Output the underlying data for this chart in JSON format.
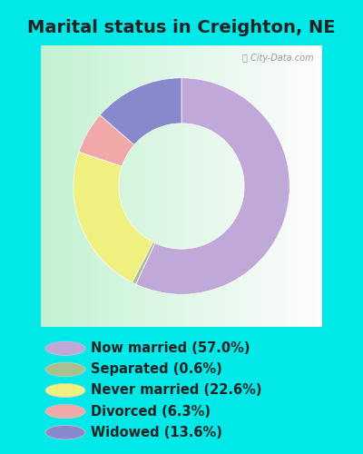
{
  "title": "Marital status in Creighton, NE",
  "values": [
    57.0,
    0.6,
    22.6,
    6.3,
    13.6
  ],
  "colors": [
    "#c0a8d8",
    "#a8c090",
    "#f0f080",
    "#f0a8a8",
    "#8888cc"
  ],
  "legend_labels": [
    "Now married (57.0%)",
    "Separated (0.6%)",
    "Never married (22.6%)",
    "Divorced (6.3%)",
    "Widowed (13.6%)"
  ],
  "background_outer": "#00e8e8",
  "watermark": "City-Data.com",
  "title_fontsize": 14,
  "legend_fontsize": 10.5
}
